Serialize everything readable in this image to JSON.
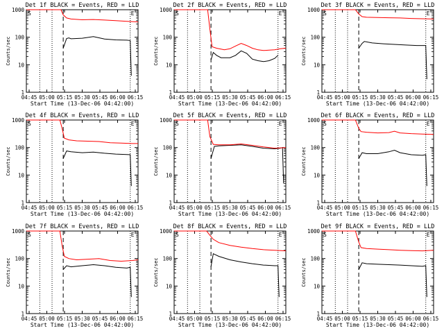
{
  "figure": {
    "xlabel": "Start Time (13-Dec-06 04:42:00)",
    "ylabel": "Counts/sec",
    "start_marker": "S",
    "end_marker": "E",
    "event_color": "#000000",
    "lld_color": "#ff0000"
  },
  "chart_data": [
    {
      "type": "line",
      "title": "Det 1f BLACK = Events, RED = LLD",
      "x_tick_labels": [
        "04:45",
        "05:00",
        "05:15",
        "05:30",
        "05:45",
        "06:00",
        "06:15"
      ],
      "y_scale": "log",
      "ylim": [
        1,
        1000
      ],
      "y_tick_labels": [
        "1",
        "10",
        "100",
        "1000"
      ],
      "xlim_minutes": [
        0,
        100
      ],
      "dotted_lines_min": [
        12,
        23,
        93
      ],
      "dashed_line_min": 33,
      "series": [
        {
          "name": "Events",
          "x": [
            33,
            36,
            38,
            40,
            50,
            60,
            70,
            80,
            90,
            93,
            94
          ],
          "y": [
            40,
            90,
            95,
            88,
            92,
            105,
            86,
            80,
            78,
            76,
            4
          ]
        },
        {
          "name": "LLD",
          "x": [
            0,
            31,
            33,
            36,
            40,
            50,
            60,
            70,
            80,
            90,
            100
          ],
          "y": [
            1000,
            1000,
            650,
            500,
            460,
            430,
            440,
            420,
            400,
            380,
            360
          ]
        }
      ]
    },
    {
      "type": "line",
      "title": "Det 2f BLACK = Events, RED = LLD",
      "x_tick_labels": [
        "04:45",
        "05:00",
        "05:15",
        "05:30",
        "05:45",
        "06:00",
        "06:15"
      ],
      "y_scale": "log",
      "ylim": [
        1,
        1000
      ],
      "y_tick_labels": [
        "1",
        "10",
        "100",
        "1000"
      ],
      "xlim_minutes": [
        0,
        100
      ],
      "dotted_lines_min": [
        12,
        23,
        93
      ],
      "dashed_line_min": 33,
      "series": [
        {
          "name": "Events",
          "x": [
            33,
            35,
            38,
            42,
            50,
            55,
            60,
            65,
            70,
            75,
            80,
            85,
            90,
            93
          ],
          "y": [
            15,
            28,
            22,
            18,
            18,
            22,
            32,
            26,
            16,
            14,
            13,
            14,
            17,
            22
          ]
        },
        {
          "name": "LLD",
          "x": [
            0,
            30,
            32,
            34,
            38,
            45,
            50,
            55,
            60,
            65,
            70,
            75,
            80,
            85,
            90,
            95,
            100
          ],
          "y": [
            1000,
            1000,
            200,
            45,
            40,
            35,
            38,
            48,
            60,
            50,
            40,
            35,
            33,
            34,
            35,
            38,
            40
          ]
        }
      ]
    },
    {
      "type": "line",
      "title": "Det 3f BLACK = Events, RED = LLD",
      "x_tick_labels": [
        "04:45",
        "05:00",
        "05:15",
        "05:30",
        "05:45",
        "06:00",
        "06:15"
      ],
      "y_scale": "log",
      "ylim": [
        1,
        1000
      ],
      "y_tick_labels": [
        "1",
        "10",
        "100",
        "1000"
      ],
      "xlim_minutes": [
        0,
        100
      ],
      "dotted_lines_min": [
        12,
        23,
        93
      ],
      "dashed_line_min": 33,
      "series": [
        {
          "name": "Events",
          "x": [
            33,
            36,
            38,
            45,
            55,
            65,
            75,
            85,
            93,
            94
          ],
          "y": [
            40,
            60,
            70,
            62,
            58,
            55,
            52,
            50,
            50,
            3
          ]
        },
        {
          "name": "LLD",
          "x": [
            0,
            30,
            33,
            36,
            40,
            50,
            60,
            70,
            80,
            90,
            100
          ],
          "y": [
            1000,
            1000,
            700,
            560,
            530,
            520,
            510,
            500,
            480,
            470,
            460
          ]
        }
      ]
    },
    {
      "type": "line",
      "title": "Det 4f BLACK = Events, RED = LLD",
      "x_tick_labels": [
        "04:45",
        "05:00",
        "05:15",
        "05:30",
        "05:45",
        "06:00",
        "06:15"
      ],
      "y_scale": "log",
      "ylim": [
        1,
        1000
      ],
      "y_tick_labels": [
        "1",
        "10",
        "100",
        "1000"
      ],
      "xlim_minutes": [
        0,
        100
      ],
      "dotted_lines_min": [
        12,
        23,
        93
      ],
      "dashed_line_min": 33,
      "series": [
        {
          "name": "Events",
          "x": [
            33,
            36,
            40,
            50,
            60,
            70,
            80,
            90,
            93,
            94
          ],
          "y": [
            40,
            75,
            70,
            65,
            68,
            62,
            58,
            56,
            55,
            4
          ]
        },
        {
          "name": "LLD",
          "x": [
            0,
            30,
            32,
            34,
            38,
            45,
            55,
            65,
            75,
            85,
            95,
            100
          ],
          "y": [
            1000,
            1000,
            500,
            220,
            190,
            175,
            170,
            165,
            150,
            145,
            140,
            140
          ]
        }
      ]
    },
    {
      "type": "line",
      "title": "Det 5f BLACK = Events, RED = LLD",
      "x_tick_labels": [
        "04:45",
        "05:00",
        "05:15",
        "05:30",
        "05:45",
        "06:00",
        "06:15"
      ],
      "y_scale": "log",
      "ylim": [
        1,
        1000
      ],
      "y_tick_labels": [
        "1",
        "10",
        "100",
        "1000"
      ],
      "xlim_minutes": [
        0,
        100
      ],
      "dotted_lines_min": [
        12,
        23,
        93
      ],
      "dashed_line_min": 33,
      "series": [
        {
          "name": "Events",
          "x": [
            33,
            36,
            40,
            50,
            60,
            70,
            80,
            90,
            95,
            97,
            98
          ],
          "y": [
            40,
            110,
            115,
            120,
            125,
            110,
            95,
            90,
            95,
            100,
            5
          ]
        },
        {
          "name": "LLD",
          "x": [
            0,
            30,
            32,
            35,
            40,
            50,
            60,
            70,
            80,
            90,
            100
          ],
          "y": [
            1000,
            1000,
            250,
            130,
            125,
            125,
            135,
            120,
            105,
            95,
            100
          ]
        }
      ]
    },
    {
      "type": "line",
      "title": "Det 6f BLACK = Events, RED = LLD",
      "x_tick_labels": [
        "04:45",
        "05:00",
        "05:15",
        "05:30",
        "05:45",
        "06:00",
        "06:15"
      ],
      "y_scale": "log",
      "ylim": [
        1,
        1000
      ],
      "y_tick_labels": [
        "1",
        "10",
        "100",
        "1000"
      ],
      "xlim_minutes": [
        0,
        100
      ],
      "dotted_lines_min": [
        12,
        23,
        93
      ],
      "dashed_line_min": 33,
      "series": [
        {
          "name": "Events",
          "x": [
            33,
            36,
            40,
            50,
            60,
            65,
            70,
            80,
            90,
            93,
            94
          ],
          "y": [
            40,
            65,
            60,
            60,
            70,
            80,
            65,
            55,
            52,
            55,
            4
          ]
        },
        {
          "name": "LLD",
          "x": [
            0,
            30,
            33,
            35,
            40,
            50,
            60,
            65,
            70,
            80,
            90,
            100
          ],
          "y": [
            1000,
            1000,
            500,
            380,
            360,
            340,
            350,
            390,
            340,
            320,
            310,
            300
          ]
        }
      ]
    },
    {
      "type": "line",
      "title": "Det 7f BLACK = Events, RED = LLD",
      "x_tick_labels": [
        "04:45",
        "05:00",
        "05:15",
        "05:30",
        "05:45",
        "06:00",
        "06:15"
      ],
      "y_scale": "log",
      "ylim": [
        1,
        1000
      ],
      "y_tick_labels": [
        "1",
        "10",
        "100",
        "1000"
      ],
      "xlim_minutes": [
        0,
        100
      ],
      "dotted_lines_min": [
        12,
        23,
        93
      ],
      "dashed_line_min": 33,
      "series": [
        {
          "name": "Events",
          "x": [
            33,
            36,
            40,
            50,
            60,
            70,
            80,
            90,
            93,
            94
          ],
          "y": [
            40,
            55,
            50,
            55,
            60,
            55,
            48,
            45,
            48,
            4
          ]
        },
        {
          "name": "LLD",
          "x": [
            0,
            30,
            32,
            34,
            38,
            45,
            55,
            65,
            75,
            85,
            95,
            100
          ],
          "y": [
            1000,
            1000,
            300,
            120,
            100,
            90,
            95,
            100,
            85,
            80,
            85,
            90
          ]
        }
      ]
    },
    {
      "type": "line",
      "title": "Det 8f BLACK = Events, RED = LLD",
      "x_tick_labels": [
        "04:45",
        "05:00",
        "05:15",
        "05:30",
        "05:45",
        "06:00",
        "06:15"
      ],
      "y_scale": "log",
      "ylim": [
        1,
        1000
      ],
      "y_tick_labels": [
        "1",
        "10",
        "100",
        "1000"
      ],
      "xlim_minutes": [
        0,
        100
      ],
      "dotted_lines_min": [
        12,
        23,
        93
      ],
      "dashed_line_min": 33,
      "series": [
        {
          "name": "Events",
          "x": [
            33,
            35,
            40,
            50,
            60,
            70,
            80,
            90,
            93,
            94
          ],
          "y": [
            50,
            150,
            120,
            90,
            75,
            65,
            58,
            55,
            55,
            4
          ]
        },
        {
          "name": "LLD",
          "x": [
            0,
            29,
            32,
            35,
            40,
            50,
            60,
            70,
            80,
            90,
            100
          ],
          "y": [
            1000,
            1000,
            700,
            500,
            380,
            300,
            260,
            230,
            210,
            200,
            190
          ]
        }
      ]
    },
    {
      "type": "line",
      "title": "Det 9f BLACK = Events, RED = LLD",
      "x_tick_labels": [
        "04:45",
        "05:00",
        "05:15",
        "05:30",
        "05:45",
        "06:00",
        "06:15"
      ],
      "y_scale": "log",
      "ylim": [
        1,
        1000
      ],
      "y_tick_labels": [
        "1",
        "10",
        "100",
        "1000"
      ],
      "xlim_minutes": [
        0,
        100
      ],
      "dotted_lines_min": [
        12,
        23,
        93
      ],
      "dashed_line_min": 33,
      "series": [
        {
          "name": "Events",
          "x": [
            33,
            36,
            40,
            50,
            60,
            70,
            80,
            90,
            93,
            94
          ],
          "y": [
            40,
            70,
            65,
            62,
            60,
            58,
            55,
            52,
            55,
            4
          ]
        },
        {
          "name": "LLD",
          "x": [
            0,
            30,
            33,
            35,
            40,
            50,
            60,
            70,
            80,
            90,
            100
          ],
          "y": [
            1000,
            1000,
            400,
            250,
            230,
            220,
            210,
            200,
            195,
            190,
            200
          ]
        }
      ]
    }
  ]
}
